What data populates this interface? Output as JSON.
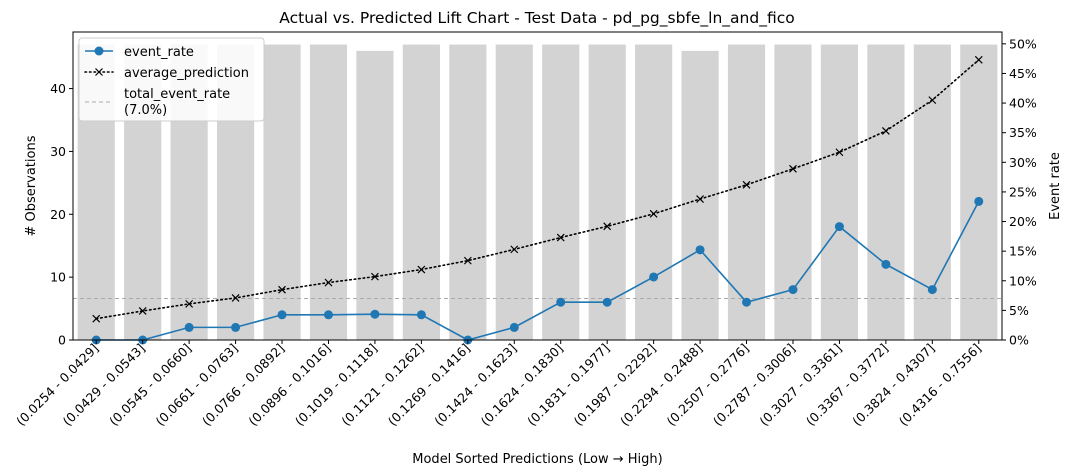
{
  "chart_data": {
    "type": "bar+line",
    "title": "Actual vs. Predicted Lift Chart - Test Data - pd_pg_sbfe_ln_and_fico",
    "xlabel": "Model Sorted Predictions (Low → High)",
    "ylabel_left": "# Observations",
    "ylabel_right": "Event rate",
    "ylim_left": [
      0,
      49
    ],
    "ylim_right": [
      0,
      0.52
    ],
    "yticks_left": [
      "0",
      "10",
      "20",
      "30",
      "40"
    ],
    "yticks_right": [
      "0%",
      "5%",
      "10%",
      "15%",
      "20%",
      "25%",
      "30%",
      "35%",
      "40%",
      "45%",
      "50%"
    ],
    "categories": [
      "(0.0254 - 0.0429]",
      "(0.0429 - 0.0543]",
      "(0.0545 - 0.0660]",
      "(0.0661 - 0.0763]",
      "(0.0766 - 0.0892]",
      "(0.0896 - 0.1016]",
      "(0.1019 - 0.1118]",
      "(0.1121 - 0.1262]",
      "(0.1269 - 0.1416]",
      "(0.1424 - 0.1623]",
      "(0.1624 - 0.1830]",
      "(0.1831 - 0.1977]",
      "(0.1987 - 0.2292]",
      "(0.2294 - 0.2488]",
      "(0.2507 - 0.2776]",
      "(0.2787 - 0.3006]",
      "(0.3027 - 0.3361]",
      "(0.3367 - 0.3772]",
      "(0.3824 - 0.4307]",
      "(0.4316 - 0.7556]"
    ],
    "observations": [
      47,
      47,
      47,
      47,
      47,
      47,
      46,
      47,
      47,
      47,
      47,
      47,
      47,
      46,
      47,
      47,
      47,
      47,
      47,
      47
    ],
    "series": [
      {
        "name": "event_rate",
        "axis": "right",
        "color": "#1f77b4",
        "values": [
          0.0,
          0.0,
          0.0213,
          0.0213,
          0.0426,
          0.0426,
          0.0435,
          0.0426,
          0.0,
          0.0213,
          0.0638,
          0.0638,
          0.1064,
          0.1522,
          0.0638,
          0.0851,
          0.1915,
          0.1277,
          0.0851,
          0.234
        ]
      },
      {
        "name": "average_prediction",
        "axis": "right",
        "color": "#000000",
        "values": [
          0.036,
          0.049,
          0.061,
          0.071,
          0.085,
          0.097,
          0.107,
          0.119,
          0.134,
          0.153,
          0.173,
          0.192,
          0.213,
          0.238,
          0.262,
          0.289,
          0.317,
          0.353,
          0.405,
          0.473
        ]
      }
    ],
    "reference_line": {
      "name": "total_event_rate",
      "label": "total_event_rate\n(7.0%)",
      "value": 0.07,
      "color": "#aaaaaa"
    },
    "legend": {
      "position": "upper-left",
      "entries": [
        "event_rate",
        "average_prediction",
        "total_event_rate",
        "(7.0%)"
      ]
    },
    "bar_color": "#d3d3d3"
  }
}
